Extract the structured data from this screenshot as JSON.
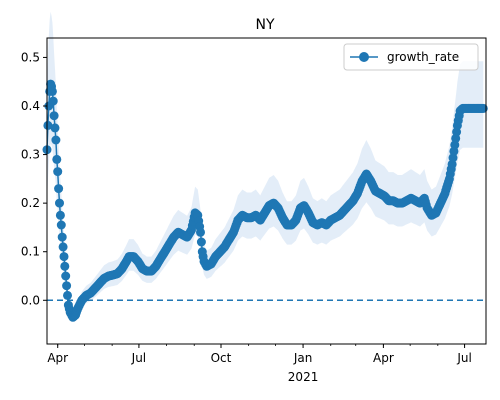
{
  "chart_data": {
    "type": "line",
    "title": "NY",
    "xlabel": "",
    "ylabel": "",
    "x_start": "2020-03-20",
    "xlim": [
      "2020-03-20",
      "2021-07-25"
    ],
    "ylim": [
      -0.09,
      0.54
    ],
    "x_ticks": [
      {
        "date": "2020-04-01",
        "label": "Apr",
        "sublabel": ""
      },
      {
        "date": "2020-07-01",
        "label": "Jul",
        "sublabel": ""
      },
      {
        "date": "2020-10-01",
        "label": "Oct",
        "sublabel": ""
      },
      {
        "date": "2021-01-01",
        "label": "Jan",
        "sublabel": "2021"
      },
      {
        "date": "2021-04-01",
        "label": "Apr",
        "sublabel": ""
      },
      {
        "date": "2021-07-01",
        "label": "Jul",
        "sublabel": ""
      }
    ],
    "y_ticks": [
      0.0,
      0.1,
      0.2,
      0.3,
      0.4,
      0.5
    ],
    "y_tick_labels": [
      "0.0",
      "0.1",
      "0.2",
      "0.3",
      "0.4",
      "0.5"
    ],
    "reference_line": {
      "y": 0.0,
      "style": "dashed"
    },
    "legend": {
      "placement": "top-right",
      "entries": [
        "growth_rate"
      ]
    },
    "colors": {
      "series": "#1f77b4",
      "band": "#dce9f6"
    },
    "series": [
      {
        "name": "growth_rate",
        "points": [
          [
            "2020-03-20",
            0.31
          ],
          [
            "2020-03-21",
            0.36
          ],
          [
            "2020-03-22",
            0.4
          ],
          [
            "2020-03-23",
            0.43
          ],
          [
            "2020-03-24",
            0.445
          ],
          [
            "2020-03-25",
            0.44
          ],
          [
            "2020-03-26",
            0.43
          ],
          [
            "2020-03-27",
            0.41
          ],
          [
            "2020-03-28",
            0.38
          ],
          [
            "2020-03-29",
            0.355
          ],
          [
            "2020-03-30",
            0.33
          ],
          [
            "2020-03-31",
            0.29
          ],
          [
            "2020-04-01",
            0.265
          ],
          [
            "2020-04-02",
            0.23
          ],
          [
            "2020-04-03",
            0.2
          ],
          [
            "2020-04-04",
            0.175
          ],
          [
            "2020-04-05",
            0.155
          ],
          [
            "2020-04-06",
            0.13
          ],
          [
            "2020-04-07",
            0.11
          ],
          [
            "2020-04-08",
            0.09
          ],
          [
            "2020-04-09",
            0.07
          ],
          [
            "2020-04-10",
            0.05
          ],
          [
            "2020-04-11",
            0.03
          ],
          [
            "2020-04-12",
            0.01
          ],
          [
            "2020-04-13",
            -0.01
          ],
          [
            "2020-04-15",
            -0.025
          ],
          [
            "2020-04-18",
            -0.035
          ],
          [
            "2020-04-21",
            -0.03
          ],
          [
            "2020-04-24",
            -0.015
          ],
          [
            "2020-04-28",
            0.0
          ],
          [
            "2020-05-03",
            0.01
          ],
          [
            "2020-05-08",
            0.015
          ],
          [
            "2020-05-13",
            0.025
          ],
          [
            "2020-05-18",
            0.035
          ],
          [
            "2020-05-23",
            0.045
          ],
          [
            "2020-05-28",
            0.05
          ],
          [
            "2020-06-02",
            0.052
          ],
          [
            "2020-06-07",
            0.055
          ],
          [
            "2020-06-12",
            0.065
          ],
          [
            "2020-06-17",
            0.08
          ],
          [
            "2020-06-20",
            0.09
          ],
          [
            "2020-06-25",
            0.09
          ],
          [
            "2020-06-30",
            0.08
          ],
          [
            "2020-07-05",
            0.065
          ],
          [
            "2020-07-10",
            0.06
          ],
          [
            "2020-07-15",
            0.06
          ],
          [
            "2020-07-20",
            0.07
          ],
          [
            "2020-07-25",
            0.085
          ],
          [
            "2020-07-30",
            0.1
          ],
          [
            "2020-08-04",
            0.115
          ],
          [
            "2020-08-09",
            0.13
          ],
          [
            "2020-08-14",
            0.14
          ],
          [
            "2020-08-19",
            0.135
          ],
          [
            "2020-08-24",
            0.13
          ],
          [
            "2020-08-29",
            0.145
          ],
          [
            "2020-09-02",
            0.18
          ],
          [
            "2020-09-05",
            0.175
          ],
          [
            "2020-09-08",
            0.14
          ],
          [
            "2020-09-10",
            0.1
          ],
          [
            "2020-09-12",
            0.08
          ],
          [
            "2020-09-15",
            0.07
          ],
          [
            "2020-09-20",
            0.075
          ],
          [
            "2020-09-25",
            0.09
          ],
          [
            "2020-09-30",
            0.1
          ],
          [
            "2020-10-05",
            0.11
          ],
          [
            "2020-10-10",
            0.125
          ],
          [
            "2020-10-15",
            0.14
          ],
          [
            "2020-10-20",
            0.165
          ],
          [
            "2020-10-25",
            0.175
          ],
          [
            "2020-10-30",
            0.17
          ],
          [
            "2020-11-04",
            0.17
          ],
          [
            "2020-11-09",
            0.175
          ],
          [
            "2020-11-14",
            0.165
          ],
          [
            "2020-11-19",
            0.18
          ],
          [
            "2020-11-24",
            0.195
          ],
          [
            "2020-11-29",
            0.2
          ],
          [
            "2020-12-04",
            0.19
          ],
          [
            "2020-12-09",
            0.17
          ],
          [
            "2020-12-14",
            0.155
          ],
          [
            "2020-12-19",
            0.155
          ],
          [
            "2020-12-24",
            0.165
          ],
          [
            "2020-12-29",
            0.19
          ],
          [
            "2021-01-02",
            0.195
          ],
          [
            "2021-01-07",
            0.18
          ],
          [
            "2021-01-12",
            0.16
          ],
          [
            "2021-01-17",
            0.155
          ],
          [
            "2021-01-22",
            0.16
          ],
          [
            "2021-01-27",
            0.155
          ],
          [
            "2021-02-01",
            0.165
          ],
          [
            "2021-02-06",
            0.17
          ],
          [
            "2021-02-11",
            0.175
          ],
          [
            "2021-02-16",
            0.185
          ],
          [
            "2021-02-21",
            0.195
          ],
          [
            "2021-02-26",
            0.205
          ],
          [
            "2021-03-03",
            0.22
          ],
          [
            "2021-03-08",
            0.245
          ],
          [
            "2021-03-13",
            0.26
          ],
          [
            "2021-03-18",
            0.245
          ],
          [
            "2021-03-23",
            0.225
          ],
          [
            "2021-03-28",
            0.22
          ],
          [
            "2021-04-02",
            0.215
          ],
          [
            "2021-04-07",
            0.205
          ],
          [
            "2021-04-12",
            0.205
          ],
          [
            "2021-04-17",
            0.2
          ],
          [
            "2021-04-22",
            0.2
          ],
          [
            "2021-04-27",
            0.205
          ],
          [
            "2021-05-02",
            0.21
          ],
          [
            "2021-05-07",
            0.205
          ],
          [
            "2021-05-12",
            0.2
          ],
          [
            "2021-05-17",
            0.21
          ],
          [
            "2021-05-20",
            0.19
          ],
          [
            "2021-05-25",
            0.175
          ],
          [
            "2021-05-30",
            0.18
          ],
          [
            "2021-06-04",
            0.2
          ],
          [
            "2021-06-09",
            0.22
          ],
          [
            "2021-06-14",
            0.25
          ],
          [
            "2021-06-17",
            0.28
          ],
          [
            "2021-06-20",
            0.32
          ],
          [
            "2021-06-23",
            0.36
          ],
          [
            "2021-06-26",
            0.39
          ],
          [
            "2021-06-29",
            0.395
          ],
          [
            "2021-07-02",
            0.395
          ],
          [
            "2021-07-07",
            0.395
          ],
          [
            "2021-07-12",
            0.395
          ],
          [
            "2021-07-17",
            0.395
          ],
          [
            "2021-07-22",
            0.395
          ]
        ]
      }
    ]
  }
}
